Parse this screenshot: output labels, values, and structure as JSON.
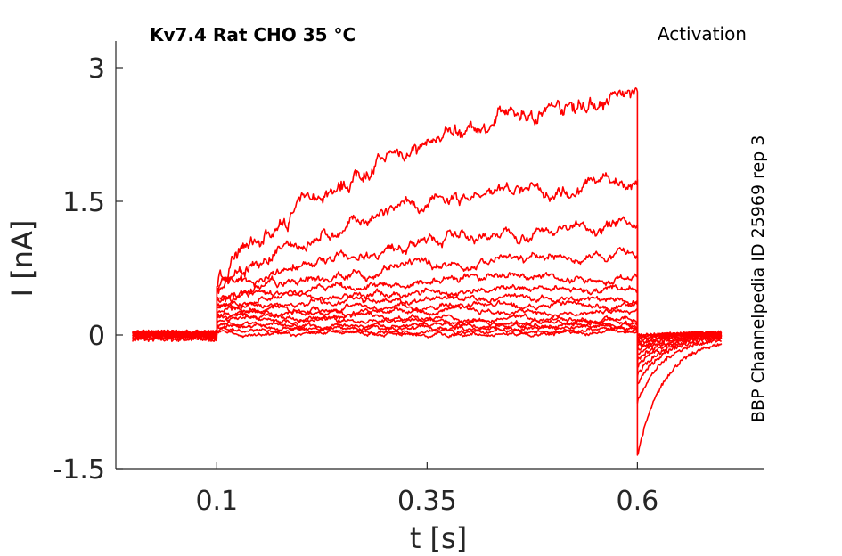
{
  "chart_data": {
    "type": "line",
    "title": "Kv7.4  Rat  CHO  35 °C",
    "subtitle": "Activation",
    "annotation": "BBP Channelpedia ID 25969 rep 3",
    "xlabel": "t [s]",
    "ylabel": "I [nA]",
    "xlim": [
      -0.02,
      0.75
    ],
    "ylim": [
      -1.5,
      3.3
    ],
    "xticks": [
      0.1,
      0.35,
      0.6
    ],
    "xtick_labels": [
      "0.1",
      "0.35",
      "0.6"
    ],
    "yticks": [
      -1.5,
      0,
      1.5,
      3
    ],
    "ytick_labels": [
      "-1.5",
      "0",
      "1.5",
      "3"
    ],
    "grid": false,
    "color": "#ff0000",
    "protocol": {
      "baseline_end": 0.1,
      "step_end": 0.6,
      "trace_start": 0.0,
      "trace_end": 0.7
    },
    "series": [
      {
        "baseline": -0.05,
        "start": 0.58,
        "end": 2.7,
        "tail": -1.35
      },
      {
        "baseline": -0.03,
        "start": 0.52,
        "end": 1.75,
        "tail": -0.75
      },
      {
        "baseline": -0.02,
        "start": 0.48,
        "end": 1.25,
        "tail": -0.55
      },
      {
        "baseline": -0.01,
        "start": 0.43,
        "end": 0.88,
        "tail": -0.45
      },
      {
        "baseline": 0.0,
        "start": 0.4,
        "end": 0.66,
        "tail": -0.35
      },
      {
        "baseline": 0.0,
        "start": 0.36,
        "end": 0.52,
        "tail": -0.28
      },
      {
        "baseline": 0.01,
        "start": 0.32,
        "end": 0.41,
        "tail": -0.22
      },
      {
        "baseline": 0.01,
        "start": 0.28,
        "end": 0.33,
        "tail": -0.17
      },
      {
        "baseline": 0.02,
        "start": 0.24,
        "end": 0.26,
        "tail": -0.13
      },
      {
        "baseline": 0.02,
        "start": 0.2,
        "end": 0.2,
        "tail": -0.1
      },
      {
        "baseline": 0.03,
        "start": 0.16,
        "end": 0.15,
        "tail": -0.07
      },
      {
        "baseline": 0.03,
        "start": 0.12,
        "end": 0.11,
        "tail": -0.05
      },
      {
        "baseline": 0.02,
        "start": 0.08,
        "end": 0.07,
        "tail": -0.03
      },
      {
        "baseline": 0.02,
        "start": 0.05,
        "end": 0.04,
        "tail": -0.01
      },
      {
        "baseline": 0.01,
        "start": 0.02,
        "end": 0.02,
        "tail": 0.0
      }
    ]
  }
}
